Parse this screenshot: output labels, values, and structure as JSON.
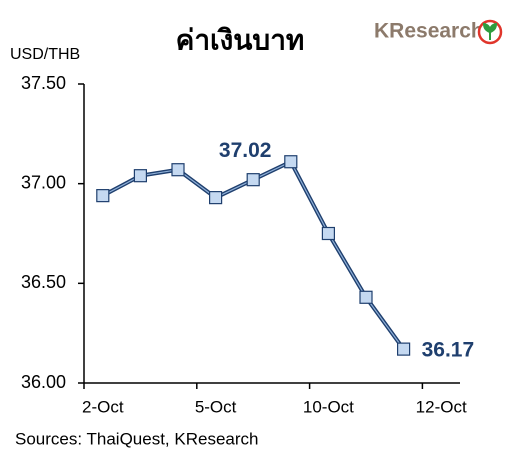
{
  "chart_data": {
    "type": "line",
    "title": "ค่าเงินบาท",
    "y_label": "USD/THB",
    "logo": "KResearch",
    "source": "Sources: ThaiQuest, KResearch",
    "categories": [
      "2-Oct",
      null,
      null,
      "5-Oct",
      null,
      null,
      "10-Oct",
      null,
      null,
      "12-Oct"
    ],
    "series": [
      {
        "name": "USD/THB",
        "color": "#1f3f6e",
        "marker_color": "#c5d9f1",
        "values": [
          36.94,
          37.04,
          37.07,
          36.93,
          37.02,
          37.11,
          36.75,
          36.43,
          36.17,
          null
        ],
        "labeled": [
          4,
          8
        ]
      }
    ],
    "ylim": [
      36.0,
      37.5
    ],
    "yticks": [
      {
        "value": 36,
        "label": "36.00"
      },
      {
        "value": 36.5,
        "label": "36.50"
      },
      {
        "value": 37,
        "label": "37.00"
      },
      {
        "value": 37.5,
        "label": "37.50"
      }
    ],
    "grid": false
  }
}
